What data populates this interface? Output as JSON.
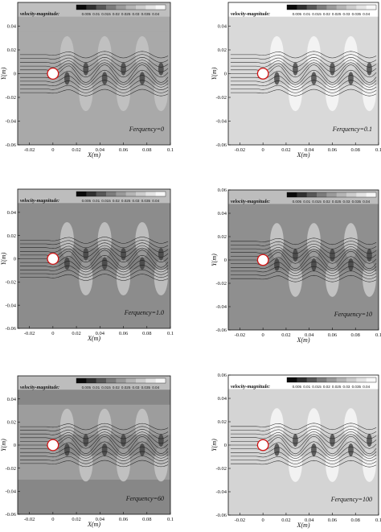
{
  "legend": {
    "label": "velocity-magnitude:",
    "ticks": [
      "0.005",
      "0.01",
      "0.015",
      "0.02",
      "0.025",
      "0.03",
      "0.035",
      "0.04"
    ],
    "levels": [
      "#0a0a0a",
      "#303030",
      "#575757",
      "#7c7c7c",
      "#9a9a9a",
      "#b5b5b5",
      "#cdcdcd",
      "#e4e4e4",
      "#f7f7f7"
    ]
  },
  "axes": {
    "xlabel": "X(m)",
    "ylabel": "Y(m)",
    "xticks": [
      "-0.02",
      "0",
      "0.02",
      "0.04",
      "0.06",
      "0.08",
      "0.1"
    ],
    "yticks": [
      "0.04",
      "0.02",
      "0",
      "-0.02",
      "-0.04",
      "-0.06"
    ],
    "yticks_top": [
      "0.06",
      "0.04",
      "0.02",
      "0",
      "-0.02",
      "-0.04",
      "-0.06"
    ],
    "xlim": [
      -0.03,
      0.1
    ],
    "ylim": [
      -0.06,
      0.06
    ]
  },
  "panels": [
    {
      "annotation": "Ferquency=0",
      "background": "#a9a9a9",
      "band": "#a9a9a9",
      "wake": "#9a9a9a",
      "lobe": "#c2c2c2",
      "strip": "#bfbfbf",
      "ytop": false
    },
    {
      "annotation": "Ferquency=0.1",
      "background": "#d9d9d9",
      "band": "#d9d9d9",
      "wake": "#bcbcbc",
      "lobe": "#f5f5f5",
      "strip": "#ffffff",
      "ytop": false
    },
    {
      "annotation": "Ferquency=1.0",
      "background": "#8c8c8c",
      "band": "#8c8c8c",
      "wake": "#7a7a7a",
      "lobe": "#c2c2c2",
      "strip": "#bdbdbd",
      "ytop": false
    },
    {
      "annotation": "Ferquency=10",
      "background": "#8f8f8f",
      "band": "#8f8f8f",
      "wake": "#7e7e7e",
      "lobe": "#c8c8c8",
      "strip": "#bdbdbd",
      "ytop": true
    },
    {
      "annotation": "Ferquency=60",
      "background": "#878787",
      "band": "#9d9d9d",
      "wake": "#7d7d7d",
      "lobe": "#c4c4c4",
      "strip": "#bdbdbd",
      "ytop": false
    },
    {
      "annotation": "Ferquency=100",
      "background": "#d4d4d4",
      "band": "#d4d4d4",
      "wake": "#bcbcbc",
      "lobe": "#f5f5f5",
      "strip": "#ffffff",
      "ytop": true
    }
  ]
}
